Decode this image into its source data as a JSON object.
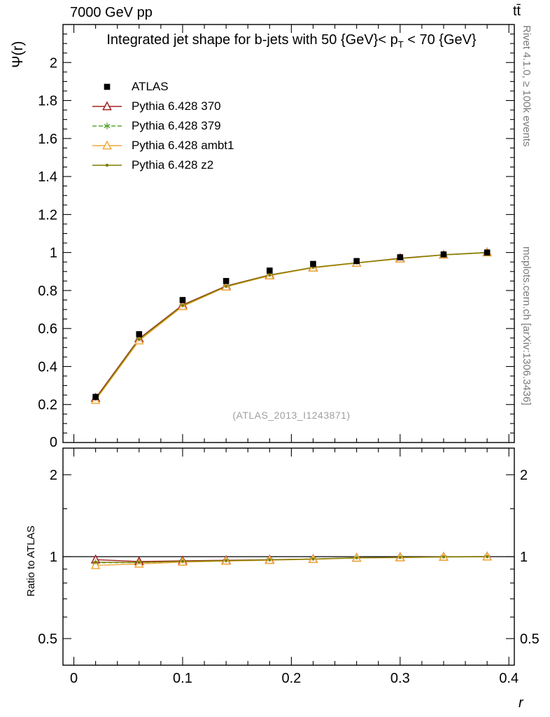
{
  "header": {
    "left": "7000 GeV pp",
    "right": "tt̄"
  },
  "title": {
    "pre": "Integrated jet shape for b-jets with 50 {GeV}< p",
    "sub": "T",
    "post": " < 70 {GeV}"
  },
  "watermark": "(ATLAS_2013_I1243871)",
  "side": {
    "top": "Rivet 4.1.0, ≥ 100k events",
    "bottom": "mcplots.cern.ch [arXiv:1306.3436]"
  },
  "chart_data": {
    "type": "line",
    "title": "Integrated jet shape for b-jets with 50 {GeV}< pT < 70 {GeV}",
    "xlabel": "r",
    "ylabel": "Ψ(r)",
    "xlim": [
      -0.01,
      0.405
    ],
    "ylim": [
      0,
      2.2
    ],
    "xticks": [
      0,
      0.1,
      0.2,
      0.3,
      0.4
    ],
    "yticks": [
      0,
      0.2,
      0.4,
      0.6,
      0.8,
      1,
      1.2,
      1.4,
      1.6,
      1.8,
      2
    ],
    "grid": false,
    "legend_position": "top-left",
    "x": [
      0.02,
      0.06,
      0.1,
      0.14,
      0.18,
      0.22,
      0.26,
      0.3,
      0.34,
      0.38
    ],
    "series": [
      {
        "name": "ATLAS",
        "color": "#000000",
        "marker": "square",
        "line": "none",
        "values": [
          0.24,
          0.57,
          0.75,
          0.85,
          0.905,
          0.94,
          0.955,
          0.975,
          0.99,
          1.0
        ]
      },
      {
        "name": "Pythia 6.428 370",
        "color": "#a32222",
        "marker": "triangle-open",
        "line": "solid",
        "values": [
          0.234,
          0.547,
          0.724,
          0.824,
          0.882,
          0.921,
          0.945,
          0.97,
          0.988,
          1.0
        ]
      },
      {
        "name": "Pythia 6.428 379",
        "color": "#58a832",
        "marker": "star",
        "line": "dashed",
        "values": [
          0.228,
          0.542,
          0.72,
          0.82,
          0.88,
          0.921,
          0.945,
          0.968,
          0.987,
          0.999
        ]
      },
      {
        "name": "Pythia 6.428 ambt1",
        "color": "#f2a93b",
        "marker": "triangle-open",
        "line": "solid",
        "values": [
          0.223,
          0.536,
          0.716,
          0.819,
          0.878,
          0.919,
          0.944,
          0.967,
          0.987,
          0.999
        ]
      },
      {
        "name": "Pythia 6.428 z2",
        "color": "#7d7d00",
        "marker": "dot",
        "line": "solid",
        "values": [
          0.229,
          0.543,
          0.721,
          0.822,
          0.881,
          0.922,
          0.946,
          0.969,
          0.988,
          1.0
        ]
      }
    ],
    "ratio": {
      "ylabel": "Ratio to ATLAS",
      "yticks": [
        0.5,
        1,
        2
      ],
      "scale": "log",
      "baseline": 1,
      "definition": "MC / ATLAS"
    }
  }
}
